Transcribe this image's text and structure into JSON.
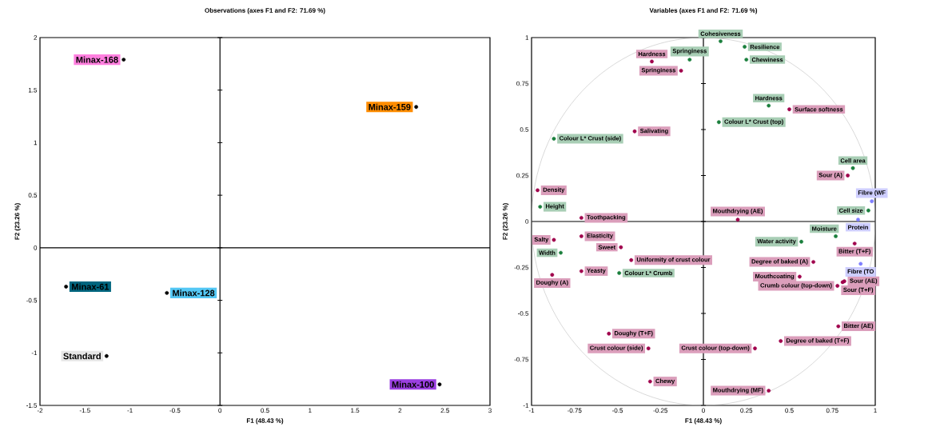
{
  "chart_data": [
    {
      "type": "scatter",
      "title": "Observations (axes F1 and F2: 71.69 %)",
      "xlabel": "F1 (48.43 %)",
      "ylabel": "F2 (23.26 %)",
      "xlim": [
        -2,
        3
      ],
      "ylim": [
        -1.5,
        2
      ],
      "xticks": [
        -2,
        -1.5,
        -1,
        -0.5,
        0,
        0.5,
        1,
        1.5,
        2,
        2.5,
        3
      ],
      "yticks": [
        -1.5,
        -1,
        -0.5,
        0,
        0.5,
        1,
        1.5,
        2
      ],
      "series": [
        {
          "color": "#000000",
          "x": [
            -1.07,
            2.18,
            -1.71,
            -0.59,
            -1.26,
            2.44
          ],
          "values": [
            1.79,
            1.34,
            -0.37,
            -0.43,
            -1.03,
            -1.3
          ],
          "value_labels": [
            "Minax-168",
            "Minax-159",
            "Minax-61",
            "Minax-128",
            "Standard",
            "Minax-100"
          ]
        }
      ]
    },
    {
      "type": "scatter",
      "title": "Variables (axes F1 and F2: 71.69 %)",
      "xlabel": "F1 (48.43 %)",
      "ylabel": "F2 (23.26 %)",
      "xlim": [
        -1,
        1
      ],
      "ylim": [
        -1,
        1
      ],
      "xticks": [
        -1,
        -0.75,
        -0.5,
        -0.25,
        0,
        0.25,
        0.5,
        0.75,
        1
      ],
      "yticks": [
        -1,
        -0.75,
        -0.5,
        -0.25,
        0,
        0.25,
        0.5,
        0.75,
        1
      ],
      "series": [
        {
          "color": "#a0004c",
          "x": [
            -0.3,
            -0.13,
            -0.4,
            -0.965,
            -0.71,
            0.5,
            0.84,
            0.2,
            -0.87,
            -0.71,
            -0.48,
            -0.42,
            -0.71,
            -0.88,
            -0.55,
            -0.32,
            -0.31,
            0.88,
            0.64,
            0.56,
            0.78,
            0.81,
            0.82,
            0.785,
            0.45,
            0.3,
            0.38
          ],
          "values": [
            0.87,
            0.82,
            0.49,
            0.17,
            0.02,
            0.61,
            0.25,
            0.01,
            -0.1,
            -0.08,
            -0.14,
            -0.21,
            -0.27,
            -0.29,
            -0.61,
            -0.69,
            -0.87,
            -0.12,
            -0.22,
            -0.3,
            -0.35,
            -0.33,
            -0.325,
            -0.57,
            -0.65,
            -0.69,
            -0.92
          ],
          "value_labels": [
            "Hardness",
            "Springiness",
            "Salivating",
            "Density",
            "Toothpacking",
            "Surface softness",
            "Sour (A)",
            "Mouthdrying (AE)",
            "Salty",
            "Elasticity",
            "Sweet",
            "Uniformity of crust colour",
            "Yeasty",
            "Doughy (A)",
            "Doughy (T+F)",
            "Crust colour (side)",
            "Chewy",
            "Bitter (T+F)",
            "Degree of baked (A)",
            "Mouthcoating",
            "Crumb colour (top-down)",
            "Sour (T+F)",
            "Sour (AE)",
            "Bitter (AE)",
            "Degree of baked (T+F)",
            "Crust colour (top-down)",
            "Mouthdrying (MF)"
          ]
        },
        {
          "color": "#1a7f3c",
          "x": [
            -0.08,
            -0.87,
            -0.95,
            0.1,
            0.24,
            0.25,
            0.38,
            0.09,
            0.87,
            0.96,
            -0.83,
            -0.49,
            0.77,
            0.57
          ],
          "values": [
            0.88,
            0.45,
            0.08,
            0.98,
            0.95,
            0.88,
            0.63,
            0.54,
            0.29,
            0.06,
            -0.17,
            -0.28,
            -0.08,
            -0.11
          ],
          "value_labels": [
            "Springiness",
            "Colour L* Crust (side)",
            "Height",
            "Cohesiveness",
            "Resilience",
            "Chewiness",
            "Hardness",
            "Colour L* Crust (top)",
            "Cell area",
            "Cell size",
            "Width",
            "Colour L* Crumb",
            "Moisture",
            "Water activity"
          ]
        },
        {
          "color": "#7f7fff",
          "x": [
            0.98,
            0.9,
            0.915
          ],
          "values": [
            0.11,
            0.01,
            -0.23
          ],
          "value_labels": [
            "Fibre (WF",
            "Protein",
            "Fibre (TO"
          ]
        }
      ]
    }
  ]
}
